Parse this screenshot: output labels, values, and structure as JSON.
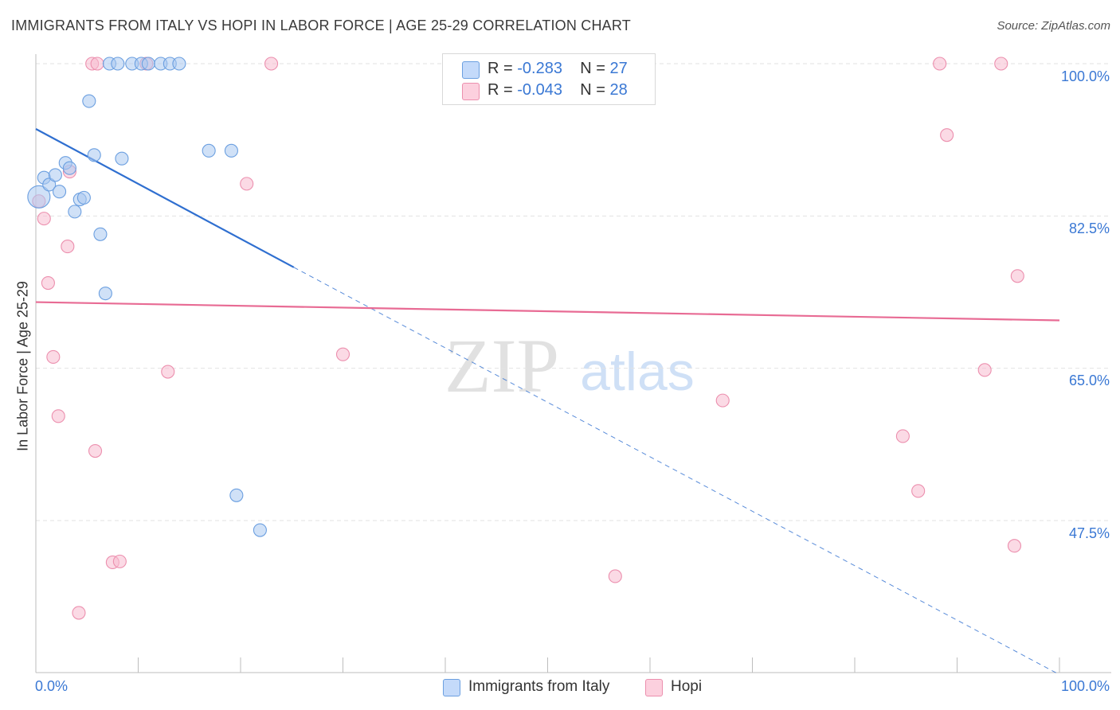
{
  "title": "IMMIGRANTS FROM ITALY VS HOPI IN LABOR FORCE | AGE 25-29 CORRELATION CHART",
  "source": "Source: ZipAtlas.com",
  "watermark": {
    "zip": "ZIP",
    "atlas": "atlas"
  },
  "legend_top": [
    {
      "r_label": "R =",
      "r_value": "-0.283",
      "n_label": "N =",
      "n_value": "27"
    },
    {
      "r_label": "R =",
      "r_value": "-0.043",
      "n_label": "N =",
      "n_value": "28"
    }
  ],
  "colors": {
    "italy_fill": "#a9c8f0",
    "italy_stroke": "#6b9fe0",
    "italy_line": "#2f6fd0",
    "hopi_fill": "#f7bcd0",
    "hopi_stroke": "#ec8fae",
    "hopi_line": "#e86b94",
    "axis_text": "#3a78d4",
    "grid": "#e2e2e2"
  },
  "chart_data": {
    "type": "scatter",
    "title": "IMMIGRANTS FROM ITALY VS HOPI IN LABOR FORCE | AGE 25-29 CORRELATION CHART",
    "xlabel": "",
    "ylabel": "In Labor Force | Age 25-29",
    "xlim": [
      0,
      100
    ],
    "ylim": [
      29.5,
      101.5
    ],
    "x_tick_labels": [
      "0.0%",
      "100.0%"
    ],
    "y_ticks": [
      100.0,
      82.5,
      65.0,
      47.5
    ],
    "y_tick_labels": [
      "100.0%",
      "82.5%",
      "65.0%",
      "47.5%"
    ],
    "grid": true,
    "legend_position": "bottom",
    "series": [
      {
        "name": "Immigrants from Italy",
        "r": -0.283,
        "n": 27,
        "trend": {
          "x0": 0,
          "y0": 92.5,
          "x1": 25.2,
          "y1": 76.6,
          "dash_to_x": 100,
          "dash_to_y": 29.8
        },
        "points": [
          {
            "x": 0.3,
            "y": 84.7
          },
          {
            "x": 0.8,
            "y": 86.9
          },
          {
            "x": 1.3,
            "y": 86.1
          },
          {
            "x": 1.9,
            "y": 87.2
          },
          {
            "x": 2.3,
            "y": 85.3
          },
          {
            "x": 2.9,
            "y": 88.6
          },
          {
            "x": 3.3,
            "y": 88.0
          },
          {
            "x": 3.8,
            "y": 83.0
          },
          {
            "x": 4.3,
            "y": 84.4
          },
          {
            "x": 4.7,
            "y": 84.6
          },
          {
            "x": 5.2,
            "y": 95.7
          },
          {
            "x": 5.7,
            "y": 89.5
          },
          {
            "x": 6.3,
            "y": 80.4
          },
          {
            "x": 6.8,
            "y": 73.6
          },
          {
            "x": 7.2,
            "y": 100.0
          },
          {
            "x": 8.0,
            "y": 100.0
          },
          {
            "x": 8.4,
            "y": 89.1
          },
          {
            "x": 9.4,
            "y": 100.0
          },
          {
            "x": 10.3,
            "y": 100.0
          },
          {
            "x": 11.0,
            "y": 100.0
          },
          {
            "x": 12.2,
            "y": 100.0
          },
          {
            "x": 13.1,
            "y": 100.0
          },
          {
            "x": 14.0,
            "y": 100.0
          },
          {
            "x": 16.9,
            "y": 90.0
          },
          {
            "x": 19.1,
            "y": 90.0
          },
          {
            "x": 19.6,
            "y": 50.4
          },
          {
            "x": 21.9,
            "y": 46.4
          }
        ]
      },
      {
        "name": "Hopi",
        "r": -0.043,
        "n": 28,
        "trend": {
          "x0": 0,
          "y0": 72.6,
          "x1": 100,
          "y1": 70.5
        },
        "points": [
          {
            "x": 0.3,
            "y": 84.2
          },
          {
            "x": 0.8,
            "y": 82.2
          },
          {
            "x": 1.2,
            "y": 74.8
          },
          {
            "x": 1.7,
            "y": 66.3
          },
          {
            "x": 2.2,
            "y": 59.5
          },
          {
            "x": 3.1,
            "y": 79.0
          },
          {
            "x": 3.3,
            "y": 87.6
          },
          {
            "x": 4.2,
            "y": 36.9
          },
          {
            "x": 5.5,
            "y": 100.0
          },
          {
            "x": 5.8,
            "y": 55.5
          },
          {
            "x": 6.0,
            "y": 100.0
          },
          {
            "x": 7.5,
            "y": 42.7
          },
          {
            "x": 8.2,
            "y": 42.8
          },
          {
            "x": 10.8,
            "y": 100.0
          },
          {
            "x": 12.9,
            "y": 64.6
          },
          {
            "x": 20.6,
            "y": 86.2
          },
          {
            "x": 23.0,
            "y": 100.0
          },
          {
            "x": 30.0,
            "y": 66.6
          },
          {
            "x": 56.6,
            "y": 41.1
          },
          {
            "x": 67.1,
            "y": 61.3
          },
          {
            "x": 84.7,
            "y": 57.2
          },
          {
            "x": 86.2,
            "y": 50.9
          },
          {
            "x": 88.3,
            "y": 100.0
          },
          {
            "x": 89.0,
            "y": 91.8
          },
          {
            "x": 92.7,
            "y": 64.8
          },
          {
            "x": 94.3,
            "y": 100.0
          },
          {
            "x": 95.6,
            "y": 44.6
          },
          {
            "x": 95.9,
            "y": 75.6
          }
        ]
      }
    ]
  }
}
